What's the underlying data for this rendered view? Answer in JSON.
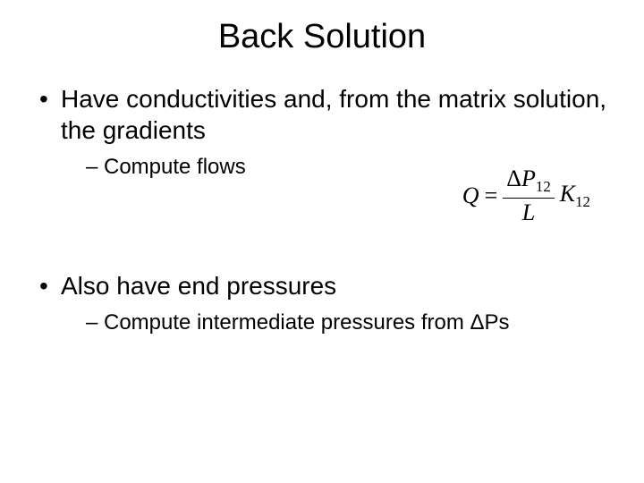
{
  "title": "Back Solution",
  "bullets": {
    "b1": "Have conductivities and, from the matrix solution, the gradients",
    "b1_sub": "Compute flows",
    "b2": "Also have end pressures",
    "b2_sub": "Compute intermediate pressures from ΔPs"
  },
  "equation": {
    "lhs": "Q",
    "eq": "=",
    "num_delta": "Δ",
    "num_P": "P",
    "num_sub": "12",
    "den": "L",
    "rhs_K": "K",
    "rhs_sub": "12"
  },
  "styling": {
    "background_color": "#ffffff",
    "text_color": "#000000",
    "title_fontsize": 38,
    "body_fontsize": 28,
    "sub_fontsize": 24,
    "equation_fontsize": 26,
    "font_family_body": "Arial",
    "font_family_eq": "Times New Roman"
  }
}
